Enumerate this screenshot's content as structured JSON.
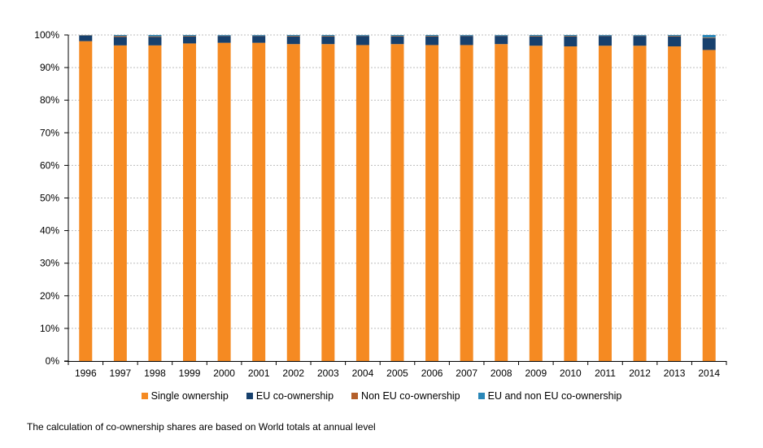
{
  "chart_data": {
    "type": "bar",
    "stacked": true,
    "categories": [
      "1996",
      "1997",
      "1998",
      "1999",
      "2000",
      "2001",
      "2002",
      "2003",
      "2004",
      "2005",
      "2006",
      "2007",
      "2008",
      "2009",
      "2010",
      "2011",
      "2012",
      "2013",
      "2014"
    ],
    "series": [
      {
        "name": "Single ownership",
        "color": "#F58A22",
        "values": [
          98.1,
          96.8,
          96.8,
          97.4,
          97.6,
          97.6,
          97.2,
          97.2,
          96.9,
          97.2,
          96.9,
          96.9,
          97.2,
          96.7,
          96.5,
          96.7,
          96.7,
          96.5,
          95.4
        ]
      },
      {
        "name": "EU co-ownership",
        "color": "#17406D",
        "values": [
          1.7,
          2.6,
          2.6,
          2.1,
          2.1,
          2.1,
          2.3,
          2.3,
          2.8,
          2.3,
          2.6,
          2.8,
          2.5,
          2.8,
          3.0,
          3.0,
          3.0,
          3.0,
          3.6
        ]
      },
      {
        "name": "Non EU co-ownership",
        "color": "#B45F2A",
        "values": [
          0.1,
          0.3,
          0.2,
          0.2,
          0.1,
          0.1,
          0.2,
          0.2,
          0.1,
          0.2,
          0.2,
          0.1,
          0.1,
          0.2,
          0.2,
          0.1,
          0.1,
          0.2,
          0.2
        ]
      },
      {
        "name": "EU and non EU co-ownership",
        "color": "#2A87B8",
        "values": [
          0.1,
          0.3,
          0.4,
          0.3,
          0.2,
          0.2,
          0.3,
          0.3,
          0.2,
          0.3,
          0.3,
          0.2,
          0.2,
          0.3,
          0.3,
          0.2,
          0.2,
          0.3,
          0.8
        ]
      }
    ],
    "y_ticks": [
      "0%",
      "10%",
      "20%",
      "30%",
      "40%",
      "50%",
      "60%",
      "70%",
      "80%",
      "90%",
      "100%"
    ],
    "ylim": [
      0,
      100
    ],
    "grid": true,
    "legend_position": "bottom"
  },
  "footnote": "The calculation of co-ownership shares are based on World totals at annual level"
}
